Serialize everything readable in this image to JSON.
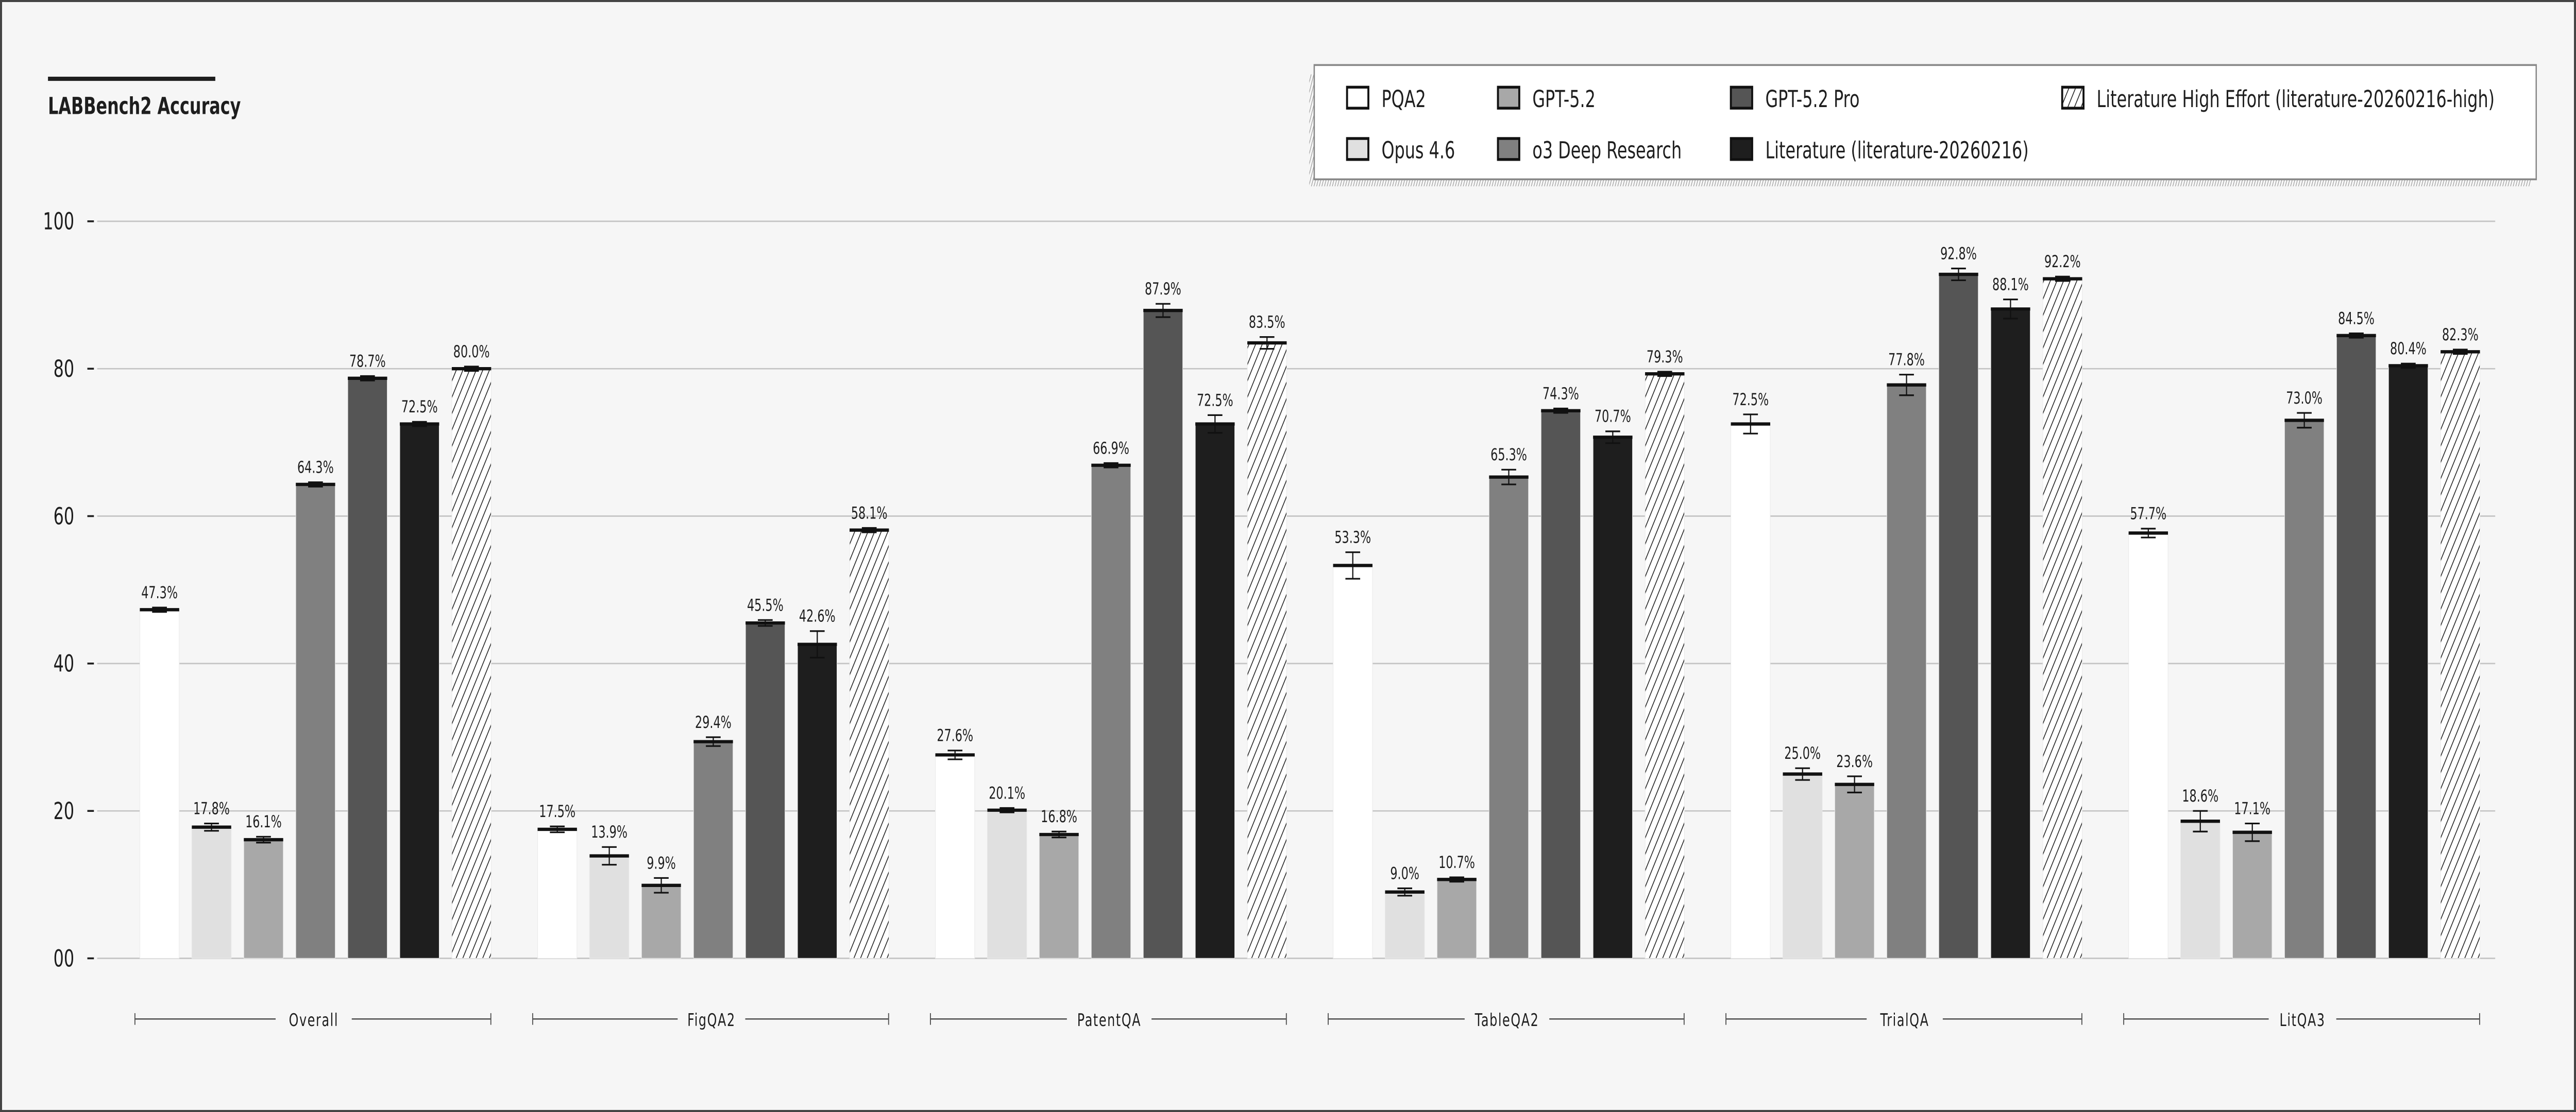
{
  "chart_data": {
    "type": "bar",
    "title": "LABBench2 Accuracy",
    "xlabel": "",
    "ylabel": "",
    "ylim": [
      0,
      100
    ],
    "yticks": [
      0,
      20,
      40,
      60,
      80,
      100
    ],
    "ytick_labels": [
      "00",
      "20",
      "40",
      "60",
      "80",
      "100"
    ],
    "grid": true,
    "legend_placement": "top-right",
    "categories": [
      "Overall",
      "FigQA2",
      "PatentQA",
      "TableQA2",
      "TrialQA",
      "LitQA3"
    ],
    "series": [
      {
        "name": "PQA2",
        "color": "#ffffff",
        "hatch": false,
        "values": [
          47.3,
          17.5,
          27.6,
          53.3,
          72.5,
          57.7
        ],
        "errors": [
          0.3,
          0.4,
          0.6,
          1.8,
          1.3,
          0.6
        ]
      },
      {
        "name": "Opus 4.6",
        "color": "#e0e0e0",
        "hatch": false,
        "values": [
          17.8,
          13.9,
          20.1,
          9.0,
          25.0,
          18.6
        ],
        "errors": [
          0.5,
          1.2,
          0.3,
          0.5,
          0.8,
          1.4
        ]
      },
      {
        "name": "GPT-5.2",
        "color": "#a8a8a8",
        "hatch": false,
        "values": [
          16.1,
          9.9,
          16.8,
          10.7,
          23.6,
          17.1
        ],
        "errors": [
          0.4,
          1.0,
          0.4,
          0.3,
          1.1,
          1.2
        ]
      },
      {
        "name": "o3 Deep Research",
        "color": "#808080",
        "hatch": false,
        "values": [
          64.3,
          29.4,
          66.9,
          65.3,
          77.8,
          73.0
        ],
        "errors": [
          0.3,
          0.6,
          0.3,
          1.0,
          1.4,
          1.0
        ]
      },
      {
        "name": "GPT-5.2 Pro",
        "color": "#555555",
        "hatch": false,
        "values": [
          78.7,
          45.5,
          87.9,
          74.3,
          92.8,
          84.5
        ],
        "errors": [
          0.3,
          0.4,
          0.9,
          0.3,
          0.8,
          0.3
        ]
      },
      {
        "name": "Literature (literature-20260216)",
        "color": "#1e1e1e",
        "hatch": false,
        "values": [
          72.5,
          42.6,
          72.5,
          70.7,
          88.1,
          80.4
        ],
        "errors": [
          0.3,
          1.8,
          1.2,
          0.8,
          1.3,
          0.3
        ]
      },
      {
        "name": "Literature High Effort (literature-20260216-high)",
        "color": "#ffffff",
        "hatch": true,
        "values": [
          80.0,
          58.1,
          83.5,
          79.3,
          92.2,
          82.3
        ],
        "errors": [
          0.3,
          0.3,
          0.8,
          0.3,
          0.3,
          0.3
        ]
      }
    ],
    "value_label_suffix": "%"
  }
}
